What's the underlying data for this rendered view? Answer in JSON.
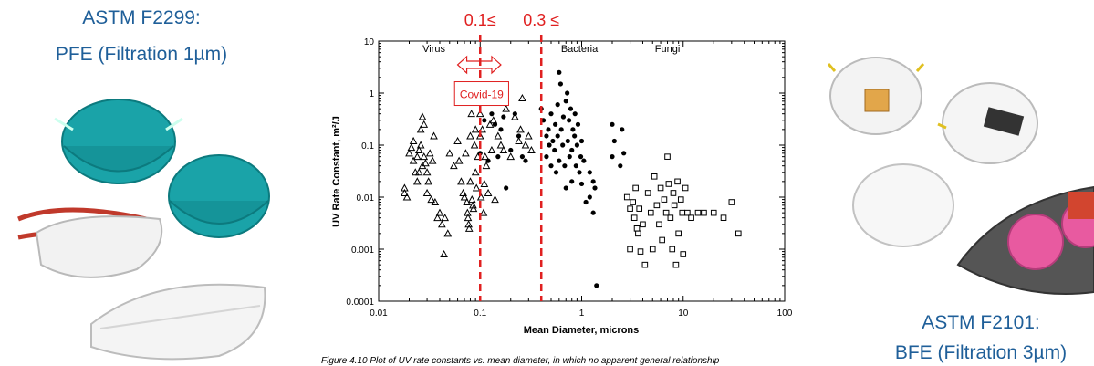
{
  "left_panel": {
    "standard": "ASTM F2299:",
    "measure": "PFE (Filtration 1µm)"
  },
  "right_panel": {
    "standard": "ASTM F2101:",
    "measure": "BFE (Filtration 3µm)"
  },
  "chart_data": {
    "type": "scatter",
    "xlabel": "Mean Diameter, microns",
    "ylabel": "UV Rate Constant, m²/J",
    "x_scale": "log",
    "y_scale": "log",
    "xlim": [
      0.01,
      100
    ],
    "ylim": [
      0.0001,
      10
    ],
    "x_ticks": [
      "0.01",
      "0.1",
      "1",
      "10",
      "100"
    ],
    "y_ticks": [
      "0.0001",
      "0.001",
      "0.01",
      "0.1",
      "1",
      "10"
    ],
    "caption": "Figure 4.10 Plot of UV rate constants vs. mean diameter, in which no apparent general relationship",
    "region_labels": [
      "Virus",
      "Bacteria",
      "Fungi"
    ],
    "annotation": "Covid-19",
    "threshold_labels": [
      "0.1≤",
      "0.3 ≤"
    ],
    "threshold_x": [
      0.1,
      0.4
    ],
    "accent_color": "#e02020",
    "series": [
      {
        "name": "Virus",
        "marker": "triangle",
        "points": [
          [
            0.018,
            0.012
          ],
          [
            0.018,
            0.015
          ],
          [
            0.019,
            0.01
          ],
          [
            0.02,
            0.07
          ],
          [
            0.021,
            0.09
          ],
          [
            0.022,
            0.05
          ],
          [
            0.022,
            0.12
          ],
          [
            0.023,
            0.03
          ],
          [
            0.024,
            0.02
          ],
          [
            0.024,
            0.06
          ],
          [
            0.025,
            0.08
          ],
          [
            0.025,
            0.03
          ],
          [
            0.026,
            0.1
          ],
          [
            0.026,
            0.2
          ],
          [
            0.027,
            0.04
          ],
          [
            0.027,
            0.35
          ],
          [
            0.028,
            0.25
          ],
          [
            0.028,
            0.06
          ],
          [
            0.029,
            0.045
          ],
          [
            0.03,
            0.03
          ],
          [
            0.03,
            0.012
          ],
          [
            0.031,
            0.02
          ],
          [
            0.032,
            0.07
          ],
          [
            0.033,
            0.009
          ],
          [
            0.034,
            0.05
          ],
          [
            0.035,
            0.15
          ],
          [
            0.036,
            0.008
          ],
          [
            0.038,
            0.004
          ],
          [
            0.04,
            0.005
          ],
          [
            0.042,
            0.003
          ],
          [
            0.044,
            0.0008
          ],
          [
            0.045,
            0.004
          ],
          [
            0.048,
            0.002
          ],
          [
            0.05,
            0.07
          ],
          [
            0.055,
            0.04
          ],
          [
            0.06,
            0.12
          ],
          [
            0.062,
            0.05
          ],
          [
            0.065,
            0.02
          ],
          [
            0.068,
            0.012
          ],
          [
            0.07,
            0.01
          ],
          [
            0.072,
            0.07
          ],
          [
            0.074,
            0.008
          ],
          [
            0.075,
            0.005
          ],
          [
            0.076,
            0.004
          ],
          [
            0.077,
            0.003
          ],
          [
            0.078,
            0.0025
          ],
          [
            0.08,
            0.02
          ],
          [
            0.08,
            0.15
          ],
          [
            0.082,
            0.4
          ],
          [
            0.083,
            0.009
          ],
          [
            0.085,
            0.007
          ],
          [
            0.086,
            0.006
          ],
          [
            0.088,
            0.1
          ],
          [
            0.09,
            0.03
          ],
          [
            0.09,
            0.2
          ],
          [
            0.092,
            0.015
          ],
          [
            0.095,
            0.06
          ],
          [
            0.1,
            0.4
          ],
          [
            0.1,
            0.15
          ],
          [
            0.102,
            0.01
          ],
          [
            0.105,
            0.2
          ],
          [
            0.108,
            0.005
          ],
          [
            0.11,
            0.018
          ],
          [
            0.112,
            0.06
          ],
          [
            0.115,
            0.04
          ],
          [
            0.12,
            0.012
          ],
          [
            0.125,
            0.25
          ],
          [
            0.13,
            0.08
          ],
          [
            0.135,
            0.3
          ],
          [
            0.14,
            0.009
          ],
          [
            0.15,
            0.15
          ],
          [
            0.16,
            0.1
          ],
          [
            0.17,
            0.08
          ],
          [
            0.18,
            0.5
          ],
          [
            0.2,
            0.06
          ],
          [
            0.22,
            0.35
          ],
          [
            0.24,
            0.12
          ],
          [
            0.25,
            0.2
          ],
          [
            0.26,
            0.8
          ],
          [
            0.28,
            0.1
          ],
          [
            0.3,
            0.15
          ],
          [
            0.32,
            0.08
          ]
        ]
      },
      {
        "name": "Bacteria",
        "marker": "dot",
        "points": [
          [
            0.1,
            0.07
          ],
          [
            0.11,
            0.3
          ],
          [
            0.12,
            0.05
          ],
          [
            0.13,
            0.4
          ],
          [
            0.14,
            0.25
          ],
          [
            0.15,
            0.06
          ],
          [
            0.16,
            0.2
          ],
          [
            0.17,
            0.35
          ],
          [
            0.18,
            0.015
          ],
          [
            0.2,
            0.08
          ],
          [
            0.22,
            0.4
          ],
          [
            0.24,
            0.15
          ],
          [
            0.26,
            0.06
          ],
          [
            0.28,
            0.05
          ],
          [
            0.4,
            0.5
          ],
          [
            0.42,
            0.3
          ],
          [
            0.45,
            0.15
          ],
          [
            0.45,
            0.06
          ],
          [
            0.47,
            0.2
          ],
          [
            0.48,
            0.1
          ],
          [
            0.5,
            0.4
          ],
          [
            0.5,
            0.04
          ],
          [
            0.52,
            0.12
          ],
          [
            0.54,
            0.08
          ],
          [
            0.55,
            0.25
          ],
          [
            0.56,
            0.03
          ],
          [
            0.58,
            0.6
          ],
          [
            0.58,
            0.15
          ],
          [
            0.6,
            0.05
          ],
          [
            0.6,
            2.5
          ],
          [
            0.62,
            1.5
          ],
          [
            0.63,
            0.2
          ],
          [
            0.65,
            0.1
          ],
          [
            0.66,
            0.35
          ],
          [
            0.68,
            0.04
          ],
          [
            0.7,
            0.7
          ],
          [
            0.7,
            0.015
          ],
          [
            0.72,
            1.0
          ],
          [
            0.73,
            0.12
          ],
          [
            0.75,
            0.3
          ],
          [
            0.76,
            0.06
          ],
          [
            0.78,
            0.5
          ],
          [
            0.8,
            0.08
          ],
          [
            0.8,
            0.02
          ],
          [
            0.82,
            0.2
          ],
          [
            0.85,
            0.15
          ],
          [
            0.86,
            0.4
          ],
          [
            0.88,
            0.04
          ],
          [
            0.9,
            0.1
          ],
          [
            0.92,
            0.25
          ],
          [
            0.95,
            0.03
          ],
          [
            0.98,
            0.06
          ],
          [
            1.0,
            0.12
          ],
          [
            1.0,
            0.018
          ],
          [
            1.05,
            0.05
          ],
          [
            1.1,
            0.008
          ],
          [
            1.2,
            0.03
          ],
          [
            1.2,
            0.01
          ],
          [
            1.3,
            0.02
          ],
          [
            1.3,
            0.005
          ],
          [
            1.35,
            0.015
          ],
          [
            1.4,
            0.0002
          ],
          [
            2.0,
            0.25
          ],
          [
            2.0,
            0.06
          ],
          [
            2.1,
            0.12
          ],
          [
            2.4,
            0.04
          ],
          [
            2.5,
            0.2
          ],
          [
            2.6,
            0.07
          ]
        ]
      },
      {
        "name": "Fungi",
        "marker": "square",
        "points": [
          [
            2.8,
            0.01
          ],
          [
            3.0,
            0.006
          ],
          [
            3.0,
            0.001
          ],
          [
            3.2,
            0.008
          ],
          [
            3.3,
            0.004
          ],
          [
            3.4,
            0.015
          ],
          [
            3.5,
            0.0025
          ],
          [
            3.6,
            0.002
          ],
          [
            3.7,
            0.006
          ],
          [
            3.8,
            0.0009
          ],
          [
            4.0,
            0.003
          ],
          [
            4.2,
            0.0005
          ],
          [
            4.5,
            0.012
          ],
          [
            4.8,
            0.005
          ],
          [
            5.0,
            0.001
          ],
          [
            5.2,
            0.025
          ],
          [
            5.5,
            0.007
          ],
          [
            5.8,
            0.003
          ],
          [
            6.0,
            0.015
          ],
          [
            6.2,
            0.0015
          ],
          [
            6.5,
            0.009
          ],
          [
            6.8,
            0.005
          ],
          [
            7.0,
            0.06
          ],
          [
            7.2,
            0.018
          ],
          [
            7.5,
            0.004
          ],
          [
            7.8,
            0.001
          ],
          [
            8.0,
            0.012
          ],
          [
            8.2,
            0.007
          ],
          [
            8.5,
            0.0005
          ],
          [
            8.8,
            0.02
          ],
          [
            9.0,
            0.002
          ],
          [
            9.5,
            0.009
          ],
          [
            9.8,
            0.005
          ],
          [
            10.0,
            0.0008
          ],
          [
            10.5,
            0.015
          ],
          [
            11,
            0.005
          ],
          [
            12,
            0.004
          ],
          [
            14,
            0.005
          ],
          [
            16,
            0.005
          ],
          [
            20,
            0.005
          ],
          [
            25,
            0.004
          ],
          [
            30,
            0.008
          ],
          [
            35,
            0.002
          ]
        ]
      }
    ]
  }
}
